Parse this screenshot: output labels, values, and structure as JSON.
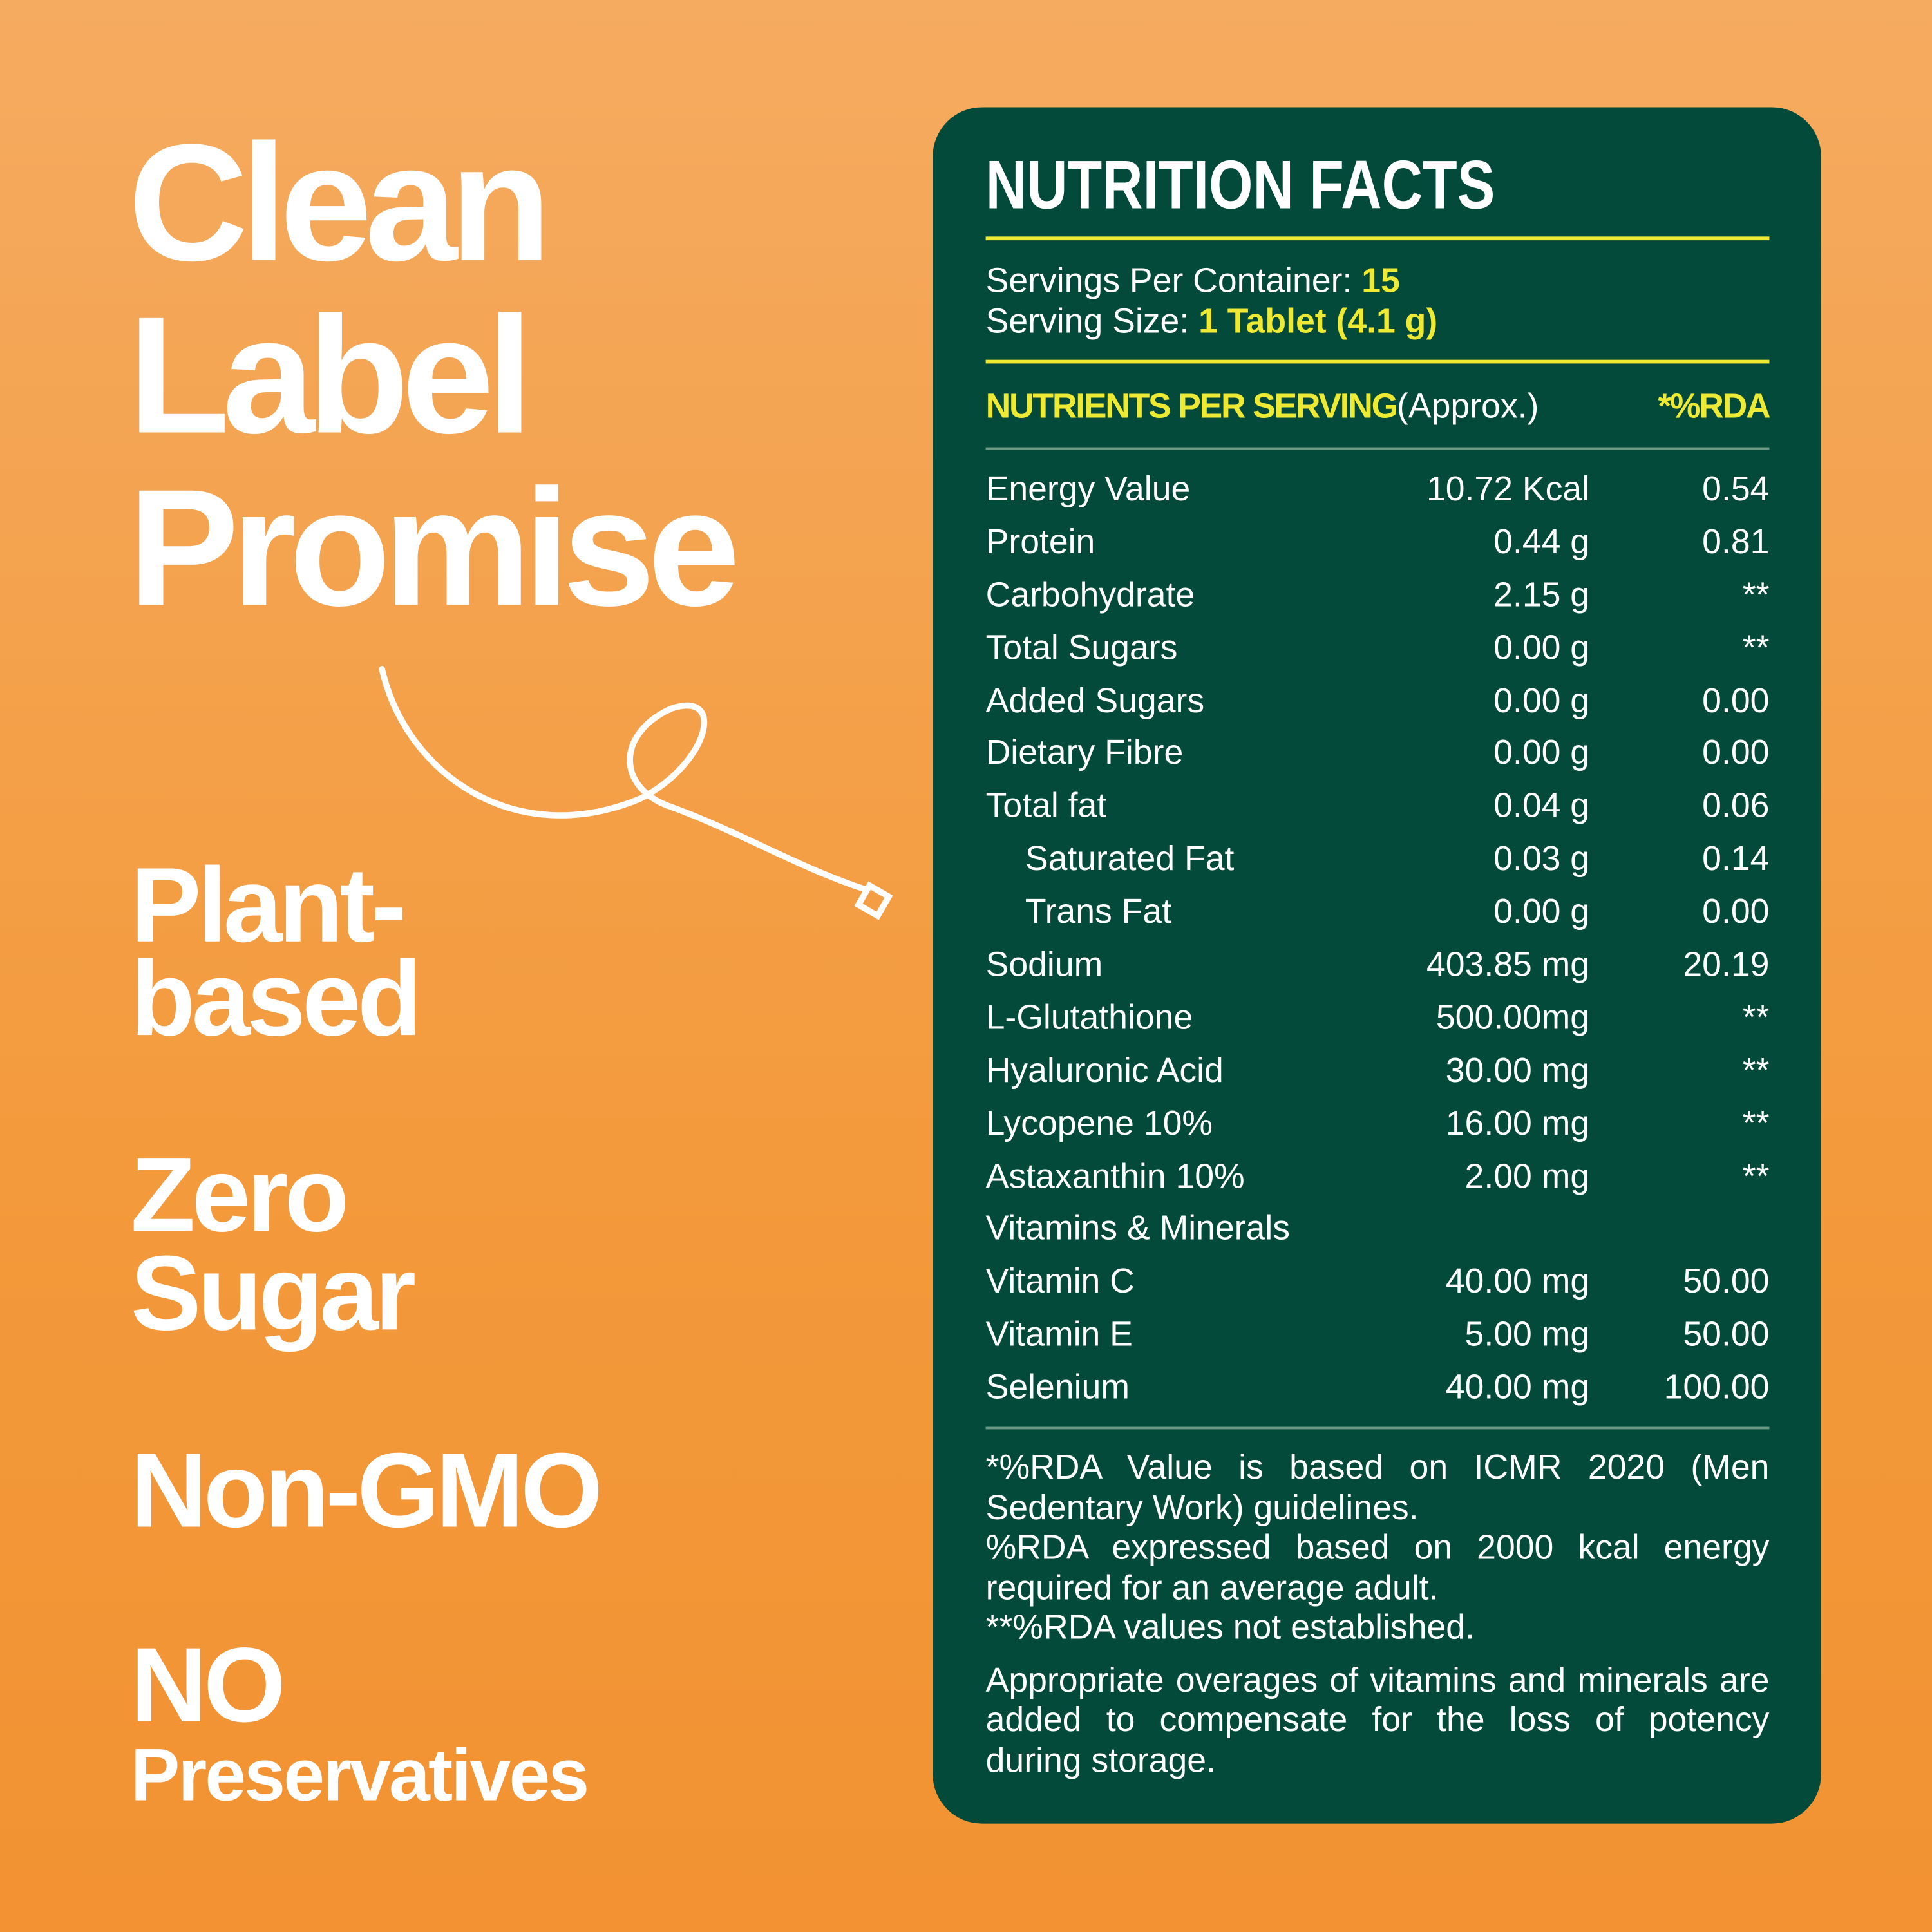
{
  "headline": [
    "Clean",
    "Label",
    "Promise"
  ],
  "claims": [
    [
      "Plant-",
      "based"
    ],
    [
      "Zero",
      "Sugar"
    ],
    [
      "Non-GMO"
    ],
    [
      "NO",
      "Preservatives"
    ]
  ],
  "nutrition": {
    "title": "NUTRITION FACTS",
    "servings_label": "Servings Per Container:",
    "servings_value": "15",
    "size_label": "Serving Size:",
    "size_value": "1 Tablet (4.1 g)",
    "header": {
      "nutrients": "NUTRIENTS PER SERVING",
      "approx": "(Approx.)",
      "rda": "*%RDA"
    },
    "rows": [
      {
        "name": "Energy Value",
        "amount": "10.72 Kcal",
        "rda": "0.54"
      },
      {
        "name": "Protein",
        "amount": "0.44 g",
        "rda": "0.81"
      },
      {
        "name": "Carbohydrate",
        "amount": "2.15 g",
        "rda": "**"
      },
      {
        "name": "Total Sugars",
        "amount": "0.00 g",
        "rda": "**"
      },
      {
        "name": "Added Sugars",
        "amount": "0.00 g",
        "rda": "0.00"
      },
      {
        "name": "Dietary Fibre",
        "amount": "0.00 g",
        "rda": "0.00"
      },
      {
        "name": "Total fat",
        "amount": "0.04 g",
        "rda": "0.06",
        "sub": [
          {
            "name": "Saturated Fat",
            "amount": "0.03 g",
            "rda": "0.14"
          },
          {
            "name": "Trans Fat",
            "amount": "0.00 g",
            "rda": "0.00"
          }
        ]
      },
      {
        "name": "Sodium",
        "amount": "403.85 mg",
        "rda": "20.19"
      },
      {
        "name": "L-Glutathione",
        "amount": "500.00mg",
        "rda": "**"
      },
      {
        "name": "Hyaluronic Acid",
        "amount": "30.00 mg",
        "rda": "**"
      },
      {
        "name": "Lycopene 10%",
        "amount": "16.00 mg",
        "rda": "**"
      },
      {
        "name": "Astaxanthin 10%",
        "amount": "2.00 mg",
        "rda": "**"
      },
      {
        "name": "Vitamins & Minerals"
      },
      {
        "name": "Vitamin C",
        "amount": "40.00 mg",
        "rda": "50.00"
      },
      {
        "name": "Vitamin E",
        "amount": "5.00 mg",
        "rda": "50.00"
      },
      {
        "name": "Selenium",
        "amount": "40.00 mg",
        "rda": "100.00"
      }
    ],
    "footnotes": [
      "*%RDA Value is based on ICMR 2020 (Men Sedentary Work) guidelines.",
      "%RDA expressed based on 2000 kcal energy required for an average adult.",
      "**%RDA values not established."
    ],
    "note": "Appropriate overages of vitamins and minerals are added to compensate for the loss of potency during storage."
  }
}
